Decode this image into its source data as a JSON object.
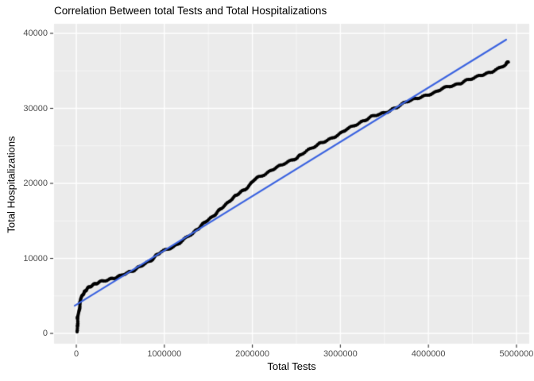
{
  "chart_data": {
    "type": "scatter",
    "title": "Correlation Between total Tests and Total Hospitalizations",
    "xlabel": "Total Tests",
    "ylabel": "Total Hospitalizations",
    "xlim": [
      -253000,
      5145000
    ],
    "ylim": [
      -1370,
      41270
    ],
    "x_ticks": [
      0,
      1000000,
      2000000,
      3000000,
      4000000,
      5000000
    ],
    "x_tick_labels": [
      "0",
      "1000000",
      "2000000",
      "3000000",
      "4000000",
      "5000000"
    ],
    "y_ticks": [
      0,
      10000,
      20000,
      30000,
      40000
    ],
    "y_tick_labels": [
      "0",
      "10000",
      "20000",
      "30000",
      "40000"
    ],
    "x_minor_ticks": [
      500000,
      1500000,
      2500000,
      3500000,
      4500000
    ],
    "y_minor_ticks": [
      5000,
      15000,
      25000,
      35000
    ],
    "grid": true,
    "legend": "none",
    "colors": {
      "panel_background": "#ebebeb",
      "grid_major": "#ffffff",
      "grid_minor": "#f6f6f6",
      "tick_mark": "#333333",
      "tick_label": "#4d4d4d",
      "point": "#000000",
      "trend_line": "#3c64e0"
    },
    "series": [
      {
        "name": "observations",
        "type": "scatter",
        "color": "#000000",
        "points": [
          [
            9000,
            300
          ],
          [
            9000,
            950
          ],
          [
            18000,
            1600
          ],
          [
            18000,
            2200
          ],
          [
            27000,
            2850
          ],
          [
            36000,
            3500
          ],
          [
            45000,
            4100
          ],
          [
            54000,
            4650
          ],
          [
            72000,
            5200
          ],
          [
            90000,
            5500
          ],
          [
            117000,
            5800
          ],
          [
            144000,
            6150
          ],
          [
            181000,
            6450
          ],
          [
            226000,
            6650
          ],
          [
            280000,
            6900
          ],
          [
            343000,
            7100
          ],
          [
            406000,
            7300
          ],
          [
            469000,
            7500
          ],
          [
            533000,
            7850
          ],
          [
            596000,
            8150
          ],
          [
            659000,
            8450
          ],
          [
            722000,
            8900
          ],
          [
            785000,
            9300
          ],
          [
            848000,
            9750
          ],
          [
            903000,
            10350
          ],
          [
            957000,
            10800
          ],
          [
            1029000,
            11200
          ],
          [
            1101000,
            11550
          ],
          [
            1173000,
            12050
          ],
          [
            1246000,
            12700
          ],
          [
            1318000,
            13350
          ],
          [
            1372000,
            13850
          ],
          [
            1426000,
            14400
          ],
          [
            1480000,
            15000
          ],
          [
            1534000,
            15450
          ],
          [
            1588000,
            16000
          ],
          [
            1643000,
            16600
          ],
          [
            1697000,
            17150
          ],
          [
            1751000,
            17800
          ],
          [
            1805000,
            18300
          ],
          [
            1859000,
            18750
          ],
          [
            1913000,
            19150
          ],
          [
            1968000,
            19800
          ],
          [
            2022000,
            20500
          ],
          [
            2076000,
            20850
          ],
          [
            2148000,
            21250
          ],
          [
            2220000,
            21800
          ],
          [
            2292000,
            22200
          ],
          [
            2365000,
            22650
          ],
          [
            2437000,
            23050
          ],
          [
            2509000,
            23400
          ],
          [
            2563000,
            23900
          ],
          [
            2635000,
            24450
          ],
          [
            2708000,
            24950
          ],
          [
            2780000,
            25400
          ],
          [
            2852000,
            25700
          ],
          [
            2924000,
            26150
          ],
          [
            2996000,
            26650
          ],
          [
            3069000,
            27200
          ],
          [
            3141000,
            27600
          ],
          [
            3213000,
            28050
          ],
          [
            3285000,
            28450
          ],
          [
            3357000,
            28900
          ],
          [
            3430000,
            29200
          ],
          [
            3502000,
            29400
          ],
          [
            3574000,
            29750
          ],
          [
            3646000,
            30150
          ],
          [
            3718000,
            30700
          ],
          [
            3791000,
            31100
          ],
          [
            3863000,
            31300
          ],
          [
            3935000,
            31550
          ],
          [
            4007000,
            31850
          ],
          [
            4079000,
            32150
          ],
          [
            4152000,
            32600
          ],
          [
            4224000,
            32900
          ],
          [
            4296000,
            33100
          ],
          [
            4368000,
            33350
          ],
          [
            4440000,
            33750
          ],
          [
            4513000,
            34050
          ],
          [
            4585000,
            34400
          ],
          [
            4657000,
            34600
          ],
          [
            4729000,
            34900
          ],
          [
            4801000,
            35350
          ],
          [
            4874000,
            35850
          ],
          [
            4910000,
            36200
          ]
        ]
      },
      {
        "name": "linear-fit",
        "type": "line",
        "color": "#3c64e0",
        "points": [
          [
            -18000,
            3700
          ],
          [
            4883000,
            39160
          ]
        ]
      }
    ]
  }
}
